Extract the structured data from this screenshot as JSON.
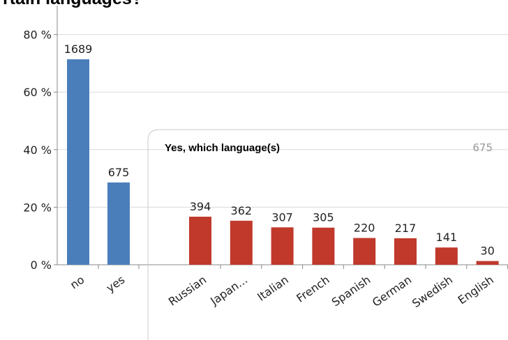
{
  "chart_data": {
    "type": "bar",
    "title": "rtain languages?",
    "yticks": [
      "0 %",
      "20 %",
      "40 %",
      "60 %",
      "80 %"
    ],
    "ylim": [
      0,
      90
    ],
    "grid": true,
    "main": {
      "categories": [
        "no",
        "yes"
      ],
      "values": [
        71.4,
        28.6
      ],
      "labels": [
        "1689",
        "675"
      ],
      "color": "#4a7ebb"
    },
    "inset": {
      "title": "Yes, which language(s)",
      "total": "675",
      "categories": [
        "Russian",
        "Japan...",
        "Italian",
        "French",
        "Spanish",
        "German",
        "Swedish",
        "English"
      ],
      "values": [
        16.7,
        15.3,
        13.0,
        12.9,
        9.3,
        9.2,
        6.0,
        1.3
      ],
      "labels": [
        "394",
        "362",
        "307",
        "305",
        "220",
        "217",
        "141",
        "30"
      ],
      "color": "#c0392b"
    }
  }
}
